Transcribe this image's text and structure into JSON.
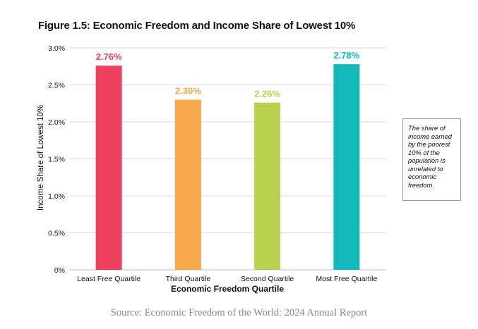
{
  "title": "Figure 1.5: Economic Freedom and Income Share of Lowest 10%",
  "note": "The share of income earned by the poorest 10% of the population is unrelated to economic freedom.",
  "source": "Source: Economic Freedom of the World: 2024 Annual Report",
  "chart_data": {
    "type": "bar",
    "title": "Figure 1.5: Economic Freedom and Income Share of Lowest 10%",
    "xlabel": "Economic Freedom Quartile",
    "ylabel": "Income Share of Lowest 10%",
    "ylim": [
      0,
      3.0
    ],
    "yticks": [
      0,
      0.5,
      1.0,
      1.5,
      2.0,
      2.5,
      3.0
    ],
    "ytick_labels": [
      "0%",
      "0.5%",
      "1.0%",
      "1.5%",
      "2.0%",
      "2.5%",
      "3.0%"
    ],
    "grid": true,
    "categories": [
      "Least Free Quartile",
      "Third Quartile",
      "Second Quartile",
      "Most Free Quartile"
    ],
    "values": [
      2.76,
      2.3,
      2.26,
      2.78
    ],
    "value_labels": [
      "2.76%",
      "2.30%",
      "2.26%",
      "2.78%"
    ],
    "colors": [
      "#ee3f5c",
      "#f7a84a",
      "#b9d14c",
      "#13b9b9"
    ]
  }
}
